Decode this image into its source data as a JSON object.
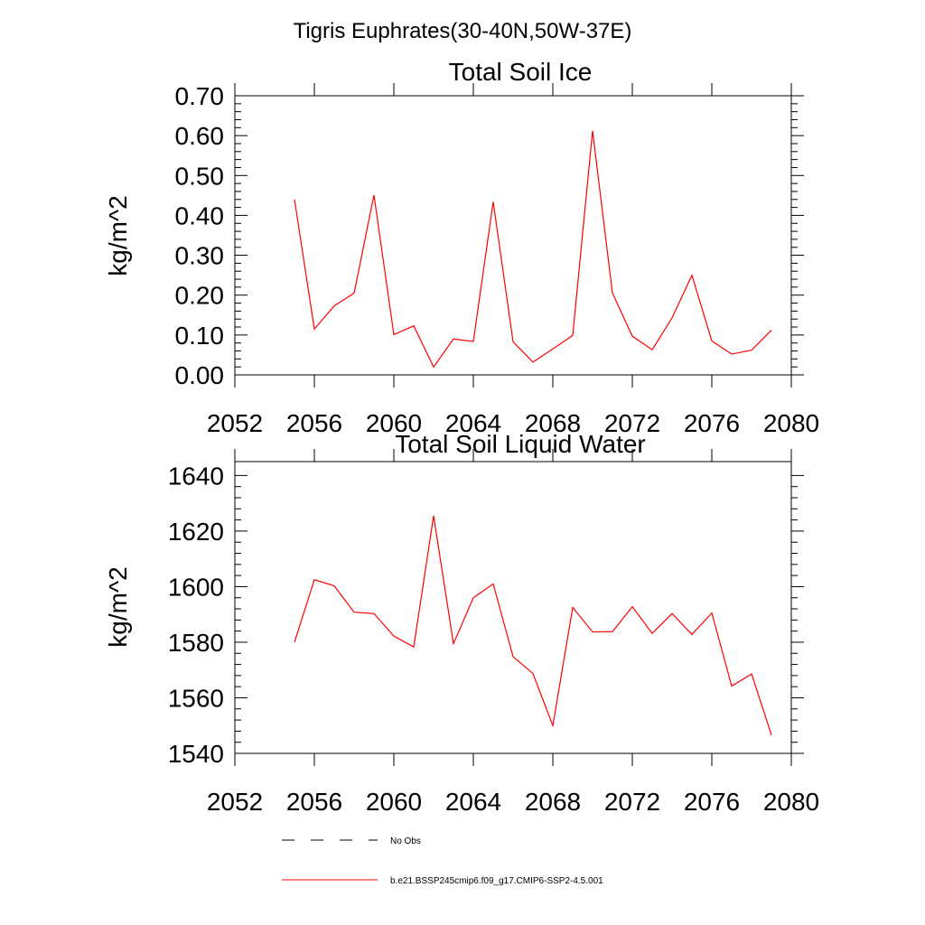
{
  "page_title": "Tigris Euphrates(30-40N,50W-37E)",
  "legend": {
    "placement": "bottom",
    "entries": [
      {
        "label": "No Obs",
        "color": "#000000",
        "style": "dashed"
      },
      {
        "label": "b.e21.BSSP245cmip6.f09_g17.CMIP6-SSP2-4.5.001",
        "color": "#ff0000",
        "style": "solid"
      }
    ]
  },
  "chart_data": [
    {
      "type": "line",
      "title": "Total Soil Ice",
      "xlabel": "",
      "ylabel": "kg/m^2",
      "xlim": [
        2052,
        2080
      ],
      "ylim": [
        0,
        0.7
      ],
      "xticks": [
        2052,
        2056,
        2060,
        2064,
        2068,
        2072,
        2076,
        2080
      ],
      "xtick_labels": [
        "2052",
        "2056",
        "2060",
        "2064",
        "2068",
        "2072",
        "2076",
        "2080"
      ],
      "yticks": [
        0,
        0.1,
        0.2,
        0.3,
        0.4,
        0.5,
        0.6,
        0.7
      ],
      "ytick_labels": [
        "0.00",
        "0.10",
        "0.20",
        "0.30",
        "0.40",
        "0.50",
        "0.60",
        "0.70"
      ],
      "grid": false,
      "x": [
        2055,
        2056,
        2057,
        2058,
        2059,
        2060,
        2061,
        2062,
        2063,
        2064,
        2065,
        2066,
        2067,
        2068,
        2069,
        2070,
        2071,
        2072,
        2073,
        2074,
        2075,
        2076,
        2077,
        2078,
        2079
      ],
      "series": [
        {
          "name": "b.e21.BSSP245cmip6.f09_g17.CMIP6-SSP2-4.5.001",
          "color": "#ff0000",
          "values": [
            0.44,
            0.115,
            0.173,
            0.205,
            0.451,
            0.101,
            0.123,
            0.02,
            0.09,
            0.084,
            0.434,
            0.083,
            0.032,
            0.065,
            0.099,
            0.612,
            0.205,
            0.097,
            0.063,
            0.143,
            0.25,
            0.085,
            0.052,
            0.062,
            0.112
          ]
        }
      ]
    },
    {
      "type": "line",
      "title": "Total Soil Liquid Water",
      "xlabel": "",
      "ylabel": "kg/m^2",
      "xlim": [
        2052,
        2080
      ],
      "ylim": [
        1540,
        1645
      ],
      "xticks": [
        2052,
        2056,
        2060,
        2064,
        2068,
        2072,
        2076,
        2080
      ],
      "xtick_labels": [
        "2052",
        "2056",
        "2060",
        "2064",
        "2068",
        "2072",
        "2076",
        "2080"
      ],
      "yticks": [
        1540,
        1560,
        1580,
        1600,
        1620,
        1640
      ],
      "ytick_labels": [
        "1540",
        "1560",
        "1580",
        "1600",
        "1620",
        "1640"
      ],
      "grid": false,
      "x": [
        2055,
        2056,
        2057,
        2058,
        2059,
        2060,
        2061,
        2062,
        2063,
        2064,
        2065,
        2066,
        2067,
        2068,
        2069,
        2070,
        2071,
        2072,
        2073,
        2074,
        2075,
        2076,
        2077,
        2078,
        2079
      ],
      "series": [
        {
          "name": "b.e21.BSSP245cmip6.f09_g17.CMIP6-SSP2-4.5.001",
          "color": "#ff0000",
          "values": [
            1580,
            1602.5,
            1600.3,
            1590.8,
            1590.3,
            1582.2,
            1578.3,
            1625.5,
            1579.5,
            1596,
            1601,
            1574.8,
            1568.7,
            1550,
            1592.5,
            1583.7,
            1583.8,
            1592.8,
            1583.2,
            1590.3,
            1582.8,
            1590.5,
            1564.2,
            1568.6,
            1546.6
          ]
        }
      ]
    }
  ]
}
